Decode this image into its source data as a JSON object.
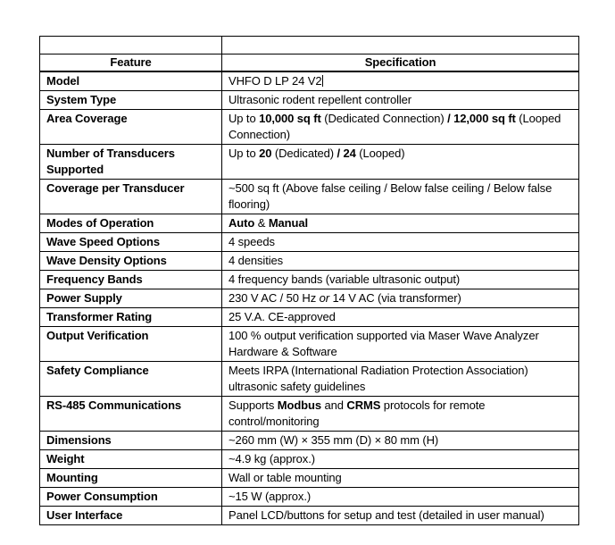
{
  "table": {
    "header": {
      "feature": "Feature",
      "specification": "Specification"
    },
    "rows": [
      {
        "feature": "Model",
        "spec": [
          {
            "t": "VHFO D LP 24 V2"
          }
        ],
        "has_cursor": true
      },
      {
        "feature": "System Type",
        "spec": [
          {
            "t": "Ultrasonic rodent repellent controller"
          }
        ]
      },
      {
        "feature": "Area Coverage",
        "spec": [
          {
            "t": "Up to "
          },
          {
            "t": "10,000 sq ft",
            "b": true
          },
          {
            "t": " (Dedicated Connection) "
          },
          {
            "t": "/",
            "b": true
          },
          {
            "t": " "
          },
          {
            "t": "12,000 sq ft",
            "b": true
          },
          {
            "t": " (Looped Connection)"
          }
        ]
      },
      {
        "feature": "Number of Transducers Supported",
        "spec": [
          {
            "t": "Up to "
          },
          {
            "t": "20",
            "b": true
          },
          {
            "t": " (Dedicated) "
          },
          {
            "t": "/",
            "b": true
          },
          {
            "t": " "
          },
          {
            "t": "24",
            "b": true
          },
          {
            "t": " (Looped)"
          }
        ]
      },
      {
        "feature": "Coverage per Transducer",
        "spec": [
          {
            "t": "~500 sq ft (Above false ceiling / Below false ceiling / Below false flooring)"
          }
        ]
      },
      {
        "feature": "Modes of Operation",
        "spec": [
          {
            "t": "Auto",
            "b": true
          },
          {
            "t": " & "
          },
          {
            "t": "Manual",
            "b": true
          }
        ]
      },
      {
        "feature": "Wave Speed Options",
        "spec": [
          {
            "t": "4 speeds"
          }
        ]
      },
      {
        "feature": "Wave Density Options",
        "spec": [
          {
            "t": "4 densities"
          }
        ]
      },
      {
        "feature": "Frequency Bands",
        "spec": [
          {
            "t": "4 frequency bands (variable ultrasonic output)"
          }
        ]
      },
      {
        "feature": "Power Supply",
        "spec": [
          {
            "t": "230 V AC / 50 Hz "
          },
          {
            "t": "or",
            "i": true
          },
          {
            "t": " 14 V AC (via transformer)"
          }
        ]
      },
      {
        "feature": "Transformer Rating",
        "spec": [
          {
            "t": "25 V.A. CE-approved"
          }
        ]
      },
      {
        "feature": "Output Verification",
        "spec": [
          {
            "t": "100 % output verification supported via Maser Wave Analyzer Hardware & Software"
          }
        ]
      },
      {
        "feature": "Safety Compliance",
        "spec": [
          {
            "t": "Meets IRPA (International Radiation Protection Association) ultrasonic safety guidelines"
          }
        ]
      },
      {
        "feature": "RS-485 Communications",
        "spec": [
          {
            "t": "Supports "
          },
          {
            "t": "Modbus",
            "b": true
          },
          {
            "t": " and "
          },
          {
            "t": "CRMS",
            "b": true
          },
          {
            "t": " protocols for remote control/monitoring"
          }
        ]
      },
      {
        "feature": "Dimensions",
        "spec": [
          {
            "t": "~260 mm (W) × 355 mm (D) × 80 mm (H)"
          }
        ]
      },
      {
        "feature": "Weight",
        "spec": [
          {
            "t": "~4.9 kg (approx.)"
          }
        ]
      },
      {
        "feature": "Mounting",
        "spec": [
          {
            "t": "Wall or table mounting"
          }
        ]
      },
      {
        "feature": "Power Consumption",
        "spec": [
          {
            "t": "~15 W (approx.)"
          }
        ]
      },
      {
        "feature": "User Interface",
        "spec": [
          {
            "t": "Panel LCD/buttons for setup and test (detailed in user manual)"
          }
        ]
      }
    ]
  },
  "colors": {
    "text": "#000000",
    "border": "#000000",
    "background": "#ffffff"
  }
}
